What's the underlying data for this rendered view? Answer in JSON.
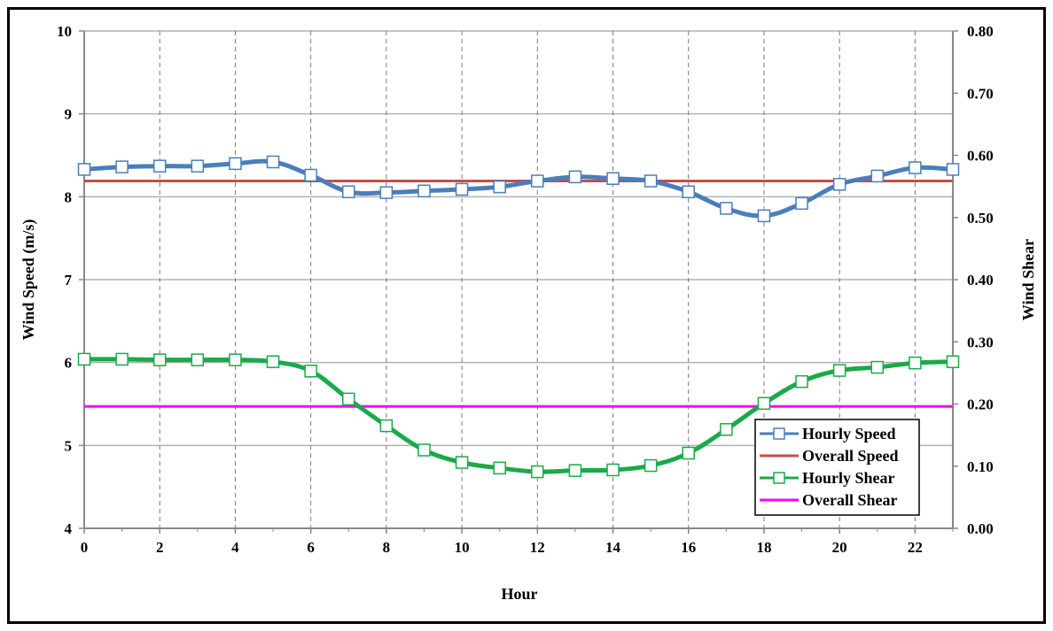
{
  "chart_data": {
    "type": "line",
    "title": "",
    "xlabel": "Hour",
    "ylabel": "Wind Speed (m/s)",
    "y2label": "Wind Shear",
    "xlim": [
      0,
      23
    ],
    "ylim": [
      4,
      10
    ],
    "y2lim": [
      0,
      0.8
    ],
    "x_ticks": [
      "0",
      "2",
      "4",
      "6",
      "8",
      "10",
      "12",
      "14",
      "16",
      "18",
      "20",
      "22"
    ],
    "y_ticks": [
      "4",
      "5",
      "6",
      "7",
      "8",
      "9",
      "10"
    ],
    "y2_ticks": [
      "0.00",
      "0.10",
      "0.20",
      "0.30",
      "0.40",
      "0.50",
      "0.60",
      "0.70",
      "0.80"
    ],
    "x": [
      0,
      1,
      2,
      3,
      4,
      5,
      6,
      7,
      8,
      9,
      10,
      11,
      12,
      13,
      14,
      15,
      16,
      17,
      18,
      19,
      20,
      21,
      22,
      23
    ],
    "grid": {
      "horizontal": "solid",
      "vertical": "dashed"
    },
    "legend_position": "bottom-right",
    "series": [
      {
        "name": "Hourly Speed",
        "axis": "left",
        "color": "#4a7ebb",
        "marker": "open-square",
        "values": [
          8.33,
          8.36,
          8.37,
          8.37,
          8.4,
          8.42,
          8.26,
          8.06,
          8.05,
          8.07,
          8.09,
          8.12,
          8.19,
          8.24,
          8.22,
          8.19,
          8.06,
          7.86,
          7.77,
          7.92,
          8.15,
          8.25,
          8.35,
          8.33
        ]
      },
      {
        "name": "Overall Speed",
        "axis": "left",
        "color": "#c0504d",
        "marker": "none",
        "values": [
          8.19,
          8.19,
          8.19,
          8.19,
          8.19,
          8.19,
          8.19,
          8.19,
          8.19,
          8.19,
          8.19,
          8.19,
          8.19,
          8.19,
          8.19,
          8.19,
          8.19,
          8.19,
          8.19,
          8.19,
          8.19,
          8.19,
          8.19,
          8.19
        ]
      },
      {
        "name": "Hourly Shear",
        "axis": "right",
        "color": "#1aaa4a",
        "marker": "open-square",
        "values": [
          0.272,
          0.272,
          0.271,
          0.271,
          0.271,
          0.268,
          0.253,
          0.208,
          0.165,
          0.126,
          0.106,
          0.097,
          0.091,
          0.093,
          0.094,
          0.101,
          0.121,
          0.159,
          0.201,
          0.236,
          0.254,
          0.259,
          0.266,
          0.268
        ]
      },
      {
        "name": "Overall Shear",
        "axis": "right",
        "color": "#ff00ff",
        "marker": "none",
        "values": [
          0.196,
          0.196,
          0.196,
          0.196,
          0.196,
          0.196,
          0.196,
          0.196,
          0.196,
          0.196,
          0.196,
          0.196,
          0.196,
          0.196,
          0.196,
          0.196,
          0.196,
          0.196,
          0.196,
          0.196,
          0.196,
          0.196,
          0.196,
          0.196
        ]
      }
    ]
  }
}
